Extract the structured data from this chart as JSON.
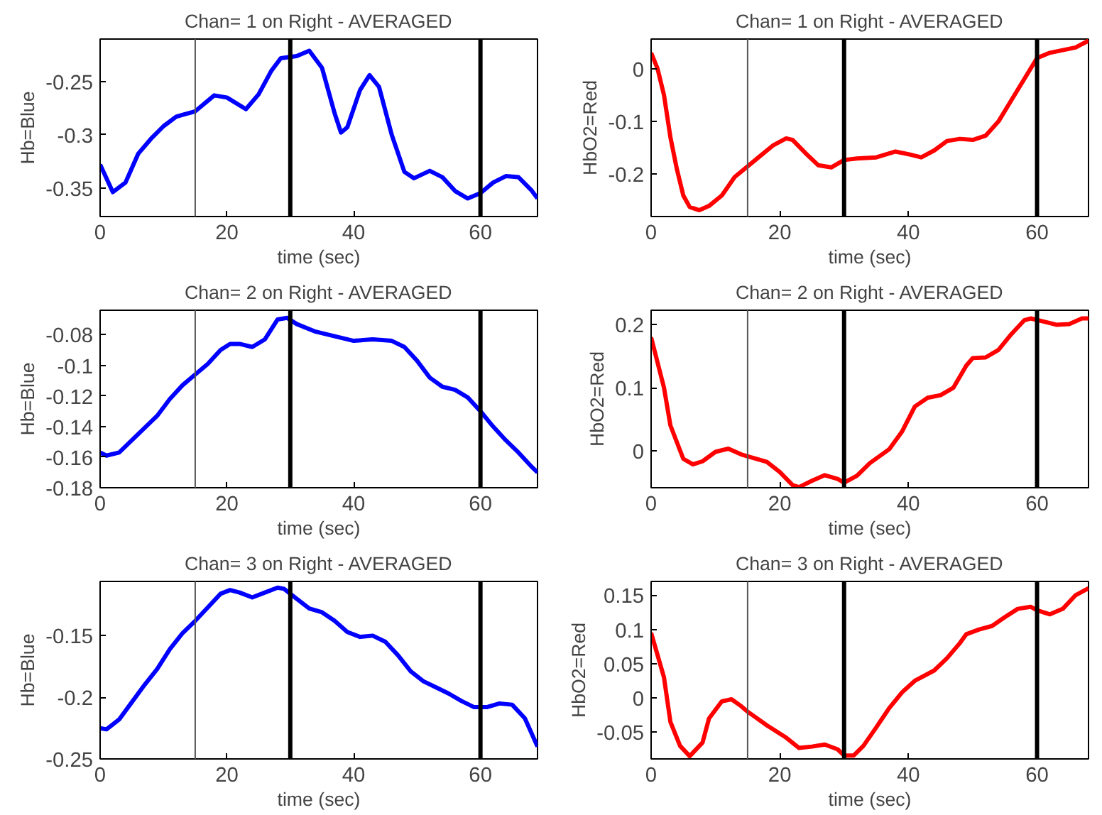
{
  "chart_data": [
    {
      "type": "line",
      "title": "Chan= 1 on Right - AVERAGED",
      "xlabel": "time (sec)",
      "ylabel": "Hb=Blue",
      "xlim": [
        0,
        69
      ],
      "ylim": [
        -0.377,
        -0.21
      ],
      "xticks": [
        0,
        20,
        40,
        60
      ],
      "yticks": [
        -0.35,
        -0.3,
        -0.25
      ],
      "grid": false,
      "marker": "none",
      "line_style": "solid",
      "ref_lines": [
        {
          "axis": "x",
          "value": 15,
          "color": "#555555"
        },
        {
          "axis": "x",
          "value": 30,
          "color": "#000000"
        },
        {
          "axis": "x",
          "value": 60,
          "color": "#000000"
        }
      ],
      "series": [
        {
          "color": "#0000ff",
          "x": [
            0,
            2,
            4,
            6,
            8,
            10,
            12,
            15,
            18,
            20,
            23,
            25,
            27,
            28.5,
            31,
            33,
            35,
            37,
            38,
            39,
            41,
            42.5,
            44,
            46,
            48,
            49.5,
            52,
            54,
            56,
            58,
            60,
            62,
            64,
            66,
            68,
            69
          ],
          "values": [
            -0.328,
            -0.354,
            -0.345,
            -0.318,
            -0.304,
            -0.292,
            -0.283,
            -0.278,
            -0.263,
            -0.265,
            -0.276,
            -0.262,
            -0.24,
            -0.228,
            -0.226,
            -0.221,
            -0.237,
            -0.28,
            -0.298,
            -0.293,
            -0.258,
            -0.244,
            -0.255,
            -0.3,
            -0.335,
            -0.341,
            -0.334,
            -0.34,
            -0.353,
            -0.36,
            -0.355,
            -0.345,
            -0.339,
            -0.34,
            -0.352,
            -0.36
          ]
        }
      ]
    },
    {
      "type": "line",
      "title": "Chan= 1 on Right - AVERAGED",
      "xlabel": "time (sec)",
      "ylabel": "HbO2=Red",
      "xlim": [
        0,
        68
      ],
      "ylim": [
        -0.28,
        0.056
      ],
      "xticks": [
        0,
        20,
        40,
        60
      ],
      "yticks": [
        -0.2,
        -0.1,
        0
      ],
      "grid": false,
      "marker": "none",
      "line_style": "solid",
      "ref_lines": [
        {
          "axis": "x",
          "value": 15,
          "color": "#555555"
        },
        {
          "axis": "x",
          "value": 30,
          "color": "#000000"
        },
        {
          "axis": "x",
          "value": 60,
          "color": "#000000"
        }
      ],
      "series": [
        {
          "color": "#ff0000",
          "x": [
            0,
            1,
            2,
            3,
            4,
            5,
            6,
            7.5,
            9,
            11,
            13,
            15,
            17,
            19,
            21,
            22,
            24,
            26,
            28,
            30,
            32,
            35,
            38,
            40,
            42,
            44,
            46,
            48,
            50,
            52,
            54,
            56,
            58,
            60,
            62,
            64,
            66,
            68
          ],
          "values": [
            0.03,
            0,
            -0.05,
            -0.13,
            -0.19,
            -0.24,
            -0.262,
            -0.268,
            -0.26,
            -0.24,
            -0.205,
            -0.185,
            -0.165,
            -0.145,
            -0.132,
            -0.135,
            -0.16,
            -0.183,
            -0.187,
            -0.173,
            -0.17,
            -0.168,
            -0.157,
            -0.162,
            -0.168,
            -0.155,
            -0.137,
            -0.133,
            -0.135,
            -0.127,
            -0.1,
            -0.06,
            -0.02,
            0.02,
            0.03,
            0.035,
            0.04,
            0.053
          ]
        }
      ]
    },
    {
      "type": "line",
      "title": "Chan= 2 on Right - AVERAGED",
      "xlabel": "time (sec)",
      "ylabel": "Hb=Blue",
      "xlim": [
        0,
        69
      ],
      "ylim": [
        -0.18,
        -0.064
      ],
      "xticks": [
        0,
        20,
        40,
        60
      ],
      "yticks": [
        -0.18,
        -0.16,
        -0.14,
        -0.12,
        -0.1,
        -0.08
      ],
      "grid": false,
      "marker": "none",
      "line_style": "solid",
      "ref_lines": [
        {
          "axis": "x",
          "value": 15,
          "color": "#555555"
        },
        {
          "axis": "x",
          "value": 30,
          "color": "#000000"
        },
        {
          "axis": "x",
          "value": 60,
          "color": "#000000"
        }
      ],
      "series": [
        {
          "color": "#0000ff",
          "x": [
            0,
            1,
            3,
            5,
            7,
            9,
            11,
            13,
            15,
            17,
            19,
            20.5,
            22,
            24,
            26,
            28,
            29.5,
            31,
            34,
            37,
            40,
            43,
            46,
            48,
            50,
            52,
            54,
            56,
            58,
            60,
            62,
            64,
            66,
            68,
            69
          ],
          "values": [
            -0.157,
            -0.159,
            -0.157,
            -0.149,
            -0.141,
            -0.133,
            -0.122,
            -0.113,
            -0.106,
            -0.099,
            -0.09,
            -0.086,
            -0.086,
            -0.088,
            -0.083,
            -0.07,
            -0.069,
            -0.073,
            -0.078,
            -0.081,
            -0.084,
            -0.083,
            -0.084,
            -0.088,
            -0.097,
            -0.108,
            -0.114,
            -0.116,
            -0.121,
            -0.13,
            -0.14,
            -0.149,
            -0.157,
            -0.166,
            -0.17
          ]
        }
      ]
    },
    {
      "type": "line",
      "title": "Chan= 2 on Right - AVERAGED",
      "xlabel": "time (sec)",
      "ylabel": "HbO2=Red",
      "xlim": [
        0,
        68
      ],
      "ylim": [
        -0.059,
        0.223
      ],
      "xticks": [
        0,
        20,
        40,
        60
      ],
      "yticks": [
        0,
        0.1,
        0.2
      ],
      "grid": false,
      "marker": "none",
      "line_style": "solid",
      "ref_lines": [
        {
          "axis": "x",
          "value": 15,
          "color": "#555555"
        },
        {
          "axis": "x",
          "value": 30,
          "color": "#000000"
        },
        {
          "axis": "x",
          "value": 60,
          "color": "#000000"
        }
      ],
      "series": [
        {
          "color": "#ff0000",
          "x": [
            0,
            2,
            3,
            5,
            6.5,
            8,
            10,
            12,
            14,
            16,
            18,
            20,
            22,
            23,
            25,
            27,
            29,
            30,
            32,
            34,
            37,
            39,
            41,
            43,
            45,
            47,
            49,
            50,
            52,
            54,
            56,
            58,
            59,
            61,
            63,
            65,
            67,
            68
          ],
          "values": [
            0.18,
            0.1,
            0.04,
            -0.013,
            -0.022,
            -0.017,
            -0.002,
            0.003,
            -0.006,
            -0.012,
            -0.018,
            -0.034,
            -0.055,
            -0.058,
            -0.048,
            -0.039,
            -0.045,
            -0.051,
            -0.04,
            -0.02,
            0.002,
            0.03,
            0.07,
            0.084,
            0.088,
            0.1,
            0.135,
            0.147,
            0.148,
            0.16,
            0.185,
            0.207,
            0.21,
            0.205,
            0.2,
            0.201,
            0.21,
            0.21
          ]
        }
      ]
    },
    {
      "type": "line",
      "title": "Chan= 3 on Right - AVERAGED",
      "xlabel": "time (sec)",
      "ylabel": "Hb=Blue",
      "xlim": [
        0,
        69
      ],
      "ylim": [
        -0.25,
        -0.106
      ],
      "xticks": [
        0,
        20,
        40,
        60
      ],
      "yticks": [
        -0.25,
        -0.2,
        -0.15
      ],
      "grid": false,
      "marker": "none",
      "line_style": "solid",
      "ref_lines": [
        {
          "axis": "x",
          "value": 15,
          "color": "#555555"
        },
        {
          "axis": "x",
          "value": 30,
          "color": "#000000"
        },
        {
          "axis": "x",
          "value": 60,
          "color": "#000000"
        }
      ],
      "series": [
        {
          "color": "#0000ff",
          "x": [
            0,
            1,
            3,
            5,
            7,
            9,
            11,
            13,
            15,
            17,
            19,
            20.5,
            22,
            24,
            26,
            28,
            29,
            31,
            33,
            35,
            37,
            39,
            41,
            43,
            45,
            47,
            49,
            51,
            53,
            55,
            57,
            59,
            61,
            63,
            65,
            67,
            69
          ],
          "values": [
            -0.225,
            -0.226,
            -0.218,
            -0.204,
            -0.19,
            -0.177,
            -0.161,
            -0.148,
            -0.138,
            -0.127,
            -0.116,
            -0.113,
            -0.115,
            -0.119,
            -0.115,
            -0.111,
            -0.112,
            -0.12,
            -0.128,
            -0.131,
            -0.138,
            -0.147,
            -0.151,
            -0.15,
            -0.155,
            -0.166,
            -0.179,
            -0.187,
            -0.192,
            -0.197,
            -0.203,
            -0.208,
            -0.208,
            -0.205,
            -0.206,
            -0.217,
            -0.24
          ]
        }
      ]
    },
    {
      "type": "line",
      "title": "Chan= 3 on Right - AVERAGED",
      "xlabel": "time (sec)",
      "ylabel": "HbO2=Red",
      "xlim": [
        0,
        68
      ],
      "ylim": [
        -0.089,
        0.17
      ],
      "xticks": [
        0,
        20,
        40,
        60
      ],
      "yticks": [
        -0.05,
        0,
        0.05,
        0.1,
        0.15
      ],
      "grid": false,
      "marker": "none",
      "line_style": "solid",
      "ref_lines": [
        {
          "axis": "x",
          "value": 15,
          "color": "#555555"
        },
        {
          "axis": "x",
          "value": 30,
          "color": "#000000"
        },
        {
          "axis": "x",
          "value": 60,
          "color": "#000000"
        }
      ],
      "series": [
        {
          "color": "#ff0000",
          "x": [
            0,
            2,
            3,
            4.5,
            6,
            8,
            9,
            11,
            12.5,
            14,
            15,
            18,
            21,
            23,
            25,
            27,
            29,
            30,
            31.5,
            33,
            35,
            37,
            39,
            41,
            44,
            46,
            48,
            49,
            51,
            53,
            55,
            57,
            59,
            60,
            62,
            64,
            66,
            68
          ],
          "values": [
            0.095,
            0.03,
            -0.035,
            -0.07,
            -0.085,
            -0.065,
            -0.03,
            -0.005,
            -0.002,
            -0.012,
            -0.02,
            -0.04,
            -0.058,
            -0.073,
            -0.071,
            -0.068,
            -0.075,
            -0.084,
            -0.084,
            -0.07,
            -0.043,
            -0.015,
            0.008,
            0.025,
            0.04,
            0.058,
            0.08,
            0.093,
            0.1,
            0.105,
            0.118,
            0.13,
            0.133,
            0.128,
            0.122,
            0.13,
            0.15,
            0.16
          ]
        }
      ]
    }
  ]
}
